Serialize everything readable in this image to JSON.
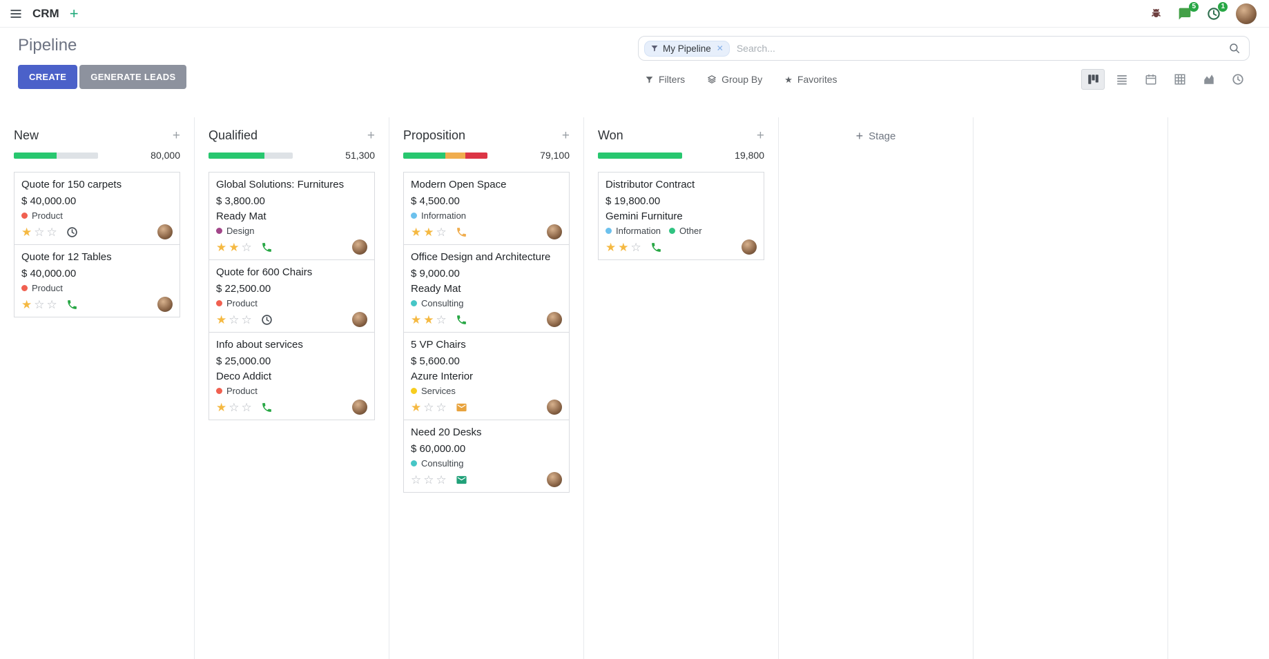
{
  "navbar": {
    "app_name": "CRM",
    "messages_badge": "5",
    "activities_badge": "1"
  },
  "control_panel": {
    "title": "Pipeline",
    "buttons": {
      "create": "CREATE",
      "generate_leads": "GENERATE LEADS"
    },
    "search": {
      "facet": "My Pipeline",
      "placeholder": "Search..."
    },
    "filter_menus": {
      "filters": "Filters",
      "group_by": "Group By",
      "favorites": "Favorites"
    }
  },
  "theme": {
    "primary": "#4b61c9",
    "secondary": "#8d929e",
    "progress_green": "#28c76f",
    "progress_yellow": "#f0ad4e",
    "progress_red": "#dc3545",
    "progress_muted": "#dee2e6",
    "star_filled": "#f5b942",
    "badge_green": "#28a745"
  },
  "board": {
    "add_stage_label": "Stage",
    "columns": [
      {
        "name": "New",
        "total": "80,000",
        "progress": [
          {
            "color": "#28c76f",
            "pct": 51
          },
          {
            "color": "#dee2e6",
            "pct": 49
          }
        ],
        "cards": [
          {
            "title": "Quote for 150 carpets",
            "amount": "$ 40,000.00",
            "partner": "",
            "tags": [
              {
                "label": "Product",
                "color": "#f06050"
              }
            ],
            "stars": 1,
            "activity": {
              "type": "clock",
              "color": "#495057"
            }
          },
          {
            "title": "Quote for 12 Tables",
            "amount": "$ 40,000.00",
            "partner": "",
            "tags": [
              {
                "label": "Product",
                "color": "#f06050"
              }
            ],
            "stars": 1,
            "activity": {
              "type": "phone",
              "color": "#28a745"
            }
          }
        ]
      },
      {
        "name": "Qualified",
        "total": "51,300",
        "progress": [
          {
            "color": "#28c76f",
            "pct": 66
          },
          {
            "color": "#dee2e6",
            "pct": 34
          }
        ],
        "cards": [
          {
            "title": "Global Solutions: Furnitures",
            "amount": "$ 3,800.00",
            "partner": "Ready Mat",
            "tags": [
              {
                "label": "Design",
                "color": "#a24689"
              }
            ],
            "stars": 2,
            "activity": {
              "type": "phone",
              "color": "#28a745"
            }
          },
          {
            "title": "Quote for 600 Chairs",
            "amount": "$ 22,500.00",
            "partner": "",
            "tags": [
              {
                "label": "Product",
                "color": "#f06050"
              }
            ],
            "stars": 1,
            "activity": {
              "type": "clock",
              "color": "#495057"
            }
          },
          {
            "title": "Info about services",
            "amount": "$ 25,000.00",
            "partner": "Deco Addict",
            "tags": [
              {
                "label": "Product",
                "color": "#f06050"
              }
            ],
            "stars": 1,
            "activity": {
              "type": "phone",
              "color": "#28a745"
            }
          }
        ]
      },
      {
        "name": "Proposition",
        "total": "79,100",
        "progress": [
          {
            "color": "#28c76f",
            "pct": 50
          },
          {
            "color": "#f0ad4e",
            "pct": 24
          },
          {
            "color": "#dc3545",
            "pct": 26
          }
        ],
        "cards": [
          {
            "title": "Modern Open Space",
            "amount": "$ 4,500.00",
            "partner": "",
            "tags": [
              {
                "label": "Information",
                "color": "#6cc1ed"
              }
            ],
            "stars": 2,
            "activity": {
              "type": "phone",
              "color": "#f0ad4e"
            }
          },
          {
            "title": "Office Design and Architecture",
            "amount": "$ 9,000.00",
            "partner": "Ready Mat",
            "tags": [
              {
                "label": "Consulting",
                "color": "#46c6c6"
              }
            ],
            "stars": 2,
            "activity": {
              "type": "phone",
              "color": "#28a745"
            }
          },
          {
            "title": "5 VP Chairs",
            "amount": "$ 5,600.00",
            "partner": "Azure Interior",
            "tags": [
              {
                "label": "Services",
                "color": "#f7cd1f"
              }
            ],
            "stars": 1,
            "activity": {
              "type": "envelope",
              "color": "#e8a33d"
            }
          },
          {
            "title": "Need 20 Desks",
            "amount": "$ 60,000.00",
            "partner": "",
            "tags": [
              {
                "label": "Consulting",
                "color": "#46c6c6"
              }
            ],
            "stars": 0,
            "activity": {
              "type": "envelope",
              "color": "#21a179"
            }
          }
        ]
      },
      {
        "name": "Won",
        "total": "19,800",
        "progress": [
          {
            "color": "#28c76f",
            "pct": 100
          }
        ],
        "cards": [
          {
            "title": "Distributor Contract",
            "amount": "$ 19,800.00",
            "partner": "Gemini Furniture",
            "tags": [
              {
                "label": "Information",
                "color": "#6cc1ed"
              },
              {
                "label": "Other",
                "color": "#30c381"
              }
            ],
            "stars": 2,
            "activity": {
              "type": "phone",
              "color": "#28a745"
            }
          }
        ]
      }
    ]
  }
}
